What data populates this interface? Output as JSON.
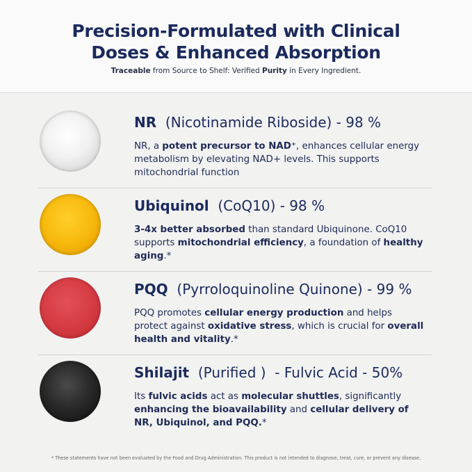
{
  "header": {
    "title_lines": [
      "Precision-Formulated with Clinical",
      "Doses & Enhanced Absorption"
    ],
    "subtitle": [
      {
        "text": "Traceable",
        "bold": true
      },
      {
        "text": " from Source to Shelf: Verified ",
        "bold": false
      },
      {
        "text": "Purity",
        "bold": true
      },
      {
        "text": " in Every Ingredient.",
        "bold": false
      }
    ]
  },
  "ingredients": [
    {
      "name": "NR",
      "detail": "(Nicotinamide Riboside) - 98 %",
      "description": [
        {
          "text": "NR, a ",
          "bold": false
        },
        {
          "text": "potent precursor to NAD⁺",
          "bold": true
        },
        {
          "text": ", enhances cellular energy metabolism by elevating NAD+ levels. This supports mitochondrial function",
          "bold": false
        }
      ]
    },
    {
      "name": "Ubiquinol",
      "detail": "(CoQ10) - 98 %",
      "description": [
        {
          "text": "3-4x better absorbed",
          "bold": true
        },
        {
          "text": " than standard Ubiquinone. CoQ10 supports ",
          "bold": false
        },
        {
          "text": "mitochondrial efficiency",
          "bold": true
        },
        {
          "text": ", a foundation of ",
          "bold": false
        },
        {
          "text": "healthy aging",
          "bold": true
        },
        {
          "text": ".*",
          "bold": false
        }
      ]
    },
    {
      "name": "PQQ",
      "detail": "(Pyrroloquinoline Quinone) - 99 %",
      "description": [
        {
          "text": "PQQ promotes ",
          "bold": false
        },
        {
          "text": "cellular energy production",
          "bold": true
        },
        {
          "text": " and helps protect against ",
          "bold": false
        },
        {
          "text": "oxidative stress",
          "bold": true
        },
        {
          "text": ", which is crucial for ",
          "bold": false
        },
        {
          "text": "overall health and vitality",
          "bold": true
        },
        {
          "text": ".*",
          "bold": false
        }
      ]
    },
    {
      "name": "Shilajit",
      "detail": "(Purified )  - Fulvic Acid - 50%",
      "description": [
        {
          "text": "Its ",
          "bold": false
        },
        {
          "text": "fulvic acids",
          "bold": true
        },
        {
          "text": " act as ",
          "bold": false
        },
        {
          "text": "molecular shuttles",
          "bold": true
        },
        {
          "text": ", significantly ",
          "bold": false
        },
        {
          "text": "enhancing the bioavailability",
          "bold": true
        },
        {
          "text": " and ",
          "bold": false
        },
        {
          "text": "cellular delivery of NR, Ubiquinol, and PQQ.",
          "bold": true
        },
        {
          "text": "*",
          "bold": false
        }
      ]
    }
  ],
  "footnote": "* These statements have not been evaluated by the Food and Drug Administration. This product is not intended to diagnose, treat, cure, or prevent any disease."
}
